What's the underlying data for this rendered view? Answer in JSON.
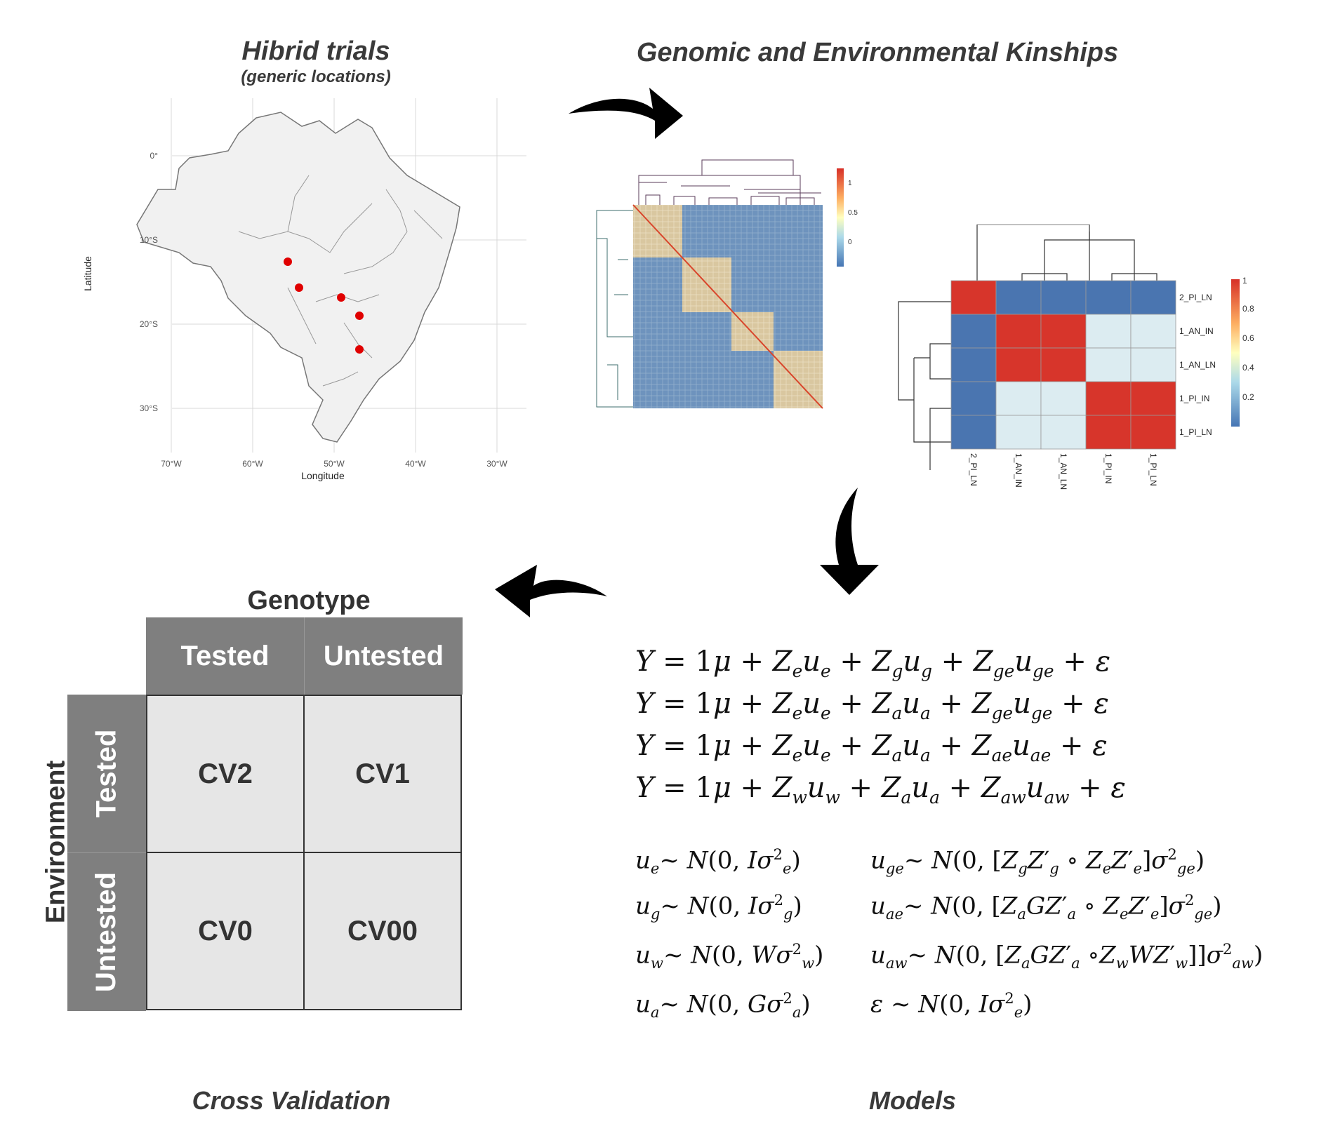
{
  "panels": {
    "trials": {
      "title": "Hibrid trials",
      "subtitle": "(generic locations)"
    },
    "kinships": {
      "title": "Genomic and Environmental Kinships"
    },
    "cross_validation": {
      "title": "Cross Validation"
    },
    "models": {
      "title": "Models"
    }
  },
  "map": {
    "xlabel": "Longitude",
    "ylabel": "Latitude",
    "lat_ticks": [
      "0°",
      "10°S",
      "20°S",
      "30°S"
    ],
    "lon_ticks": [
      "70°W",
      "60°W",
      "50°W",
      "40°W",
      "30°W"
    ],
    "points_color": "#e00000"
  },
  "env_heatmap": {
    "row_labels": [
      "2_PI_LN",
      "1_AN_IN",
      "1_AN_LN",
      "1_PI_IN",
      "1_PI_LN"
    ],
    "col_labels": [
      "2_PI_LN",
      "1_AN_IN",
      "1_AN_LN",
      "1_PI_IN",
      "1_PI_LN"
    ],
    "values": [
      [
        1,
        0,
        0,
        0,
        0
      ],
      [
        0,
        1,
        1,
        0.35,
        0.35
      ],
      [
        0,
        1,
        1,
        0.35,
        0.35
      ],
      [
        0,
        0.35,
        0.35,
        1,
        1
      ],
      [
        0,
        0.35,
        0.35,
        1,
        1
      ]
    ],
    "legend_ticks": [
      "1",
      "0.8",
      "0.6",
      "0.4",
      "0.2"
    ]
  },
  "gen_heatmap": {
    "legend_ticks": [
      "1",
      "0.5",
      "0"
    ]
  },
  "cv_table": {
    "col_header": "Genotype",
    "row_header": "Environment",
    "col_labels": [
      "Tested",
      "Untested"
    ],
    "row_labels": [
      "Tested",
      "Untested"
    ],
    "cells": [
      [
        "CV2",
        "CV1"
      ],
      [
        "CV0",
        "CV00"
      ]
    ],
    "header_color": "#7f7f7f",
    "cell_color": "#e6e6e6"
  }
}
